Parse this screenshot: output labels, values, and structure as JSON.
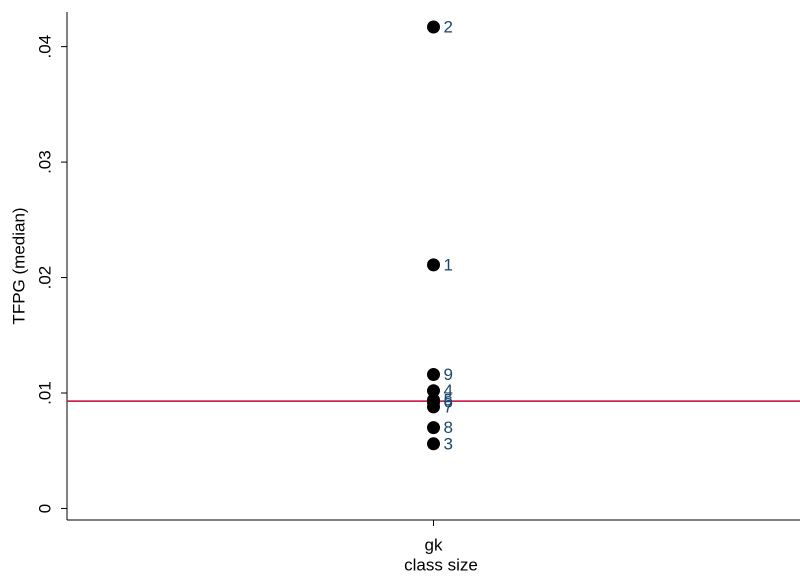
{
  "chart_data": {
    "type": "scatter",
    "categories": [
      "gk"
    ],
    "x_label": "class size",
    "y_label": "TFPG (median)",
    "values": [
      0.0211,
      0.0417,
      0.0056,
      0.0102,
      0.0094,
      0.0092,
      0.0088,
      0.007,
      0.0116
    ],
    "point_labels": [
      "1",
      "2",
      "3",
      "4",
      "5",
      "6",
      "7",
      "8",
      "9"
    ],
    "color": "#000000",
    "label_color": "#1a476f",
    "reference_line": 0.0093,
    "reference_line_color": "#c10534",
    "ylim": [
      -0.001,
      0.043
    ],
    "yticks": [
      0,
      {
        "value": 0.01,
        "label": ".01"
      },
      {
        "value": 0.02,
        "label": ".02"
      },
      {
        "value": 0.03,
        "label": ".03"
      },
      {
        "value": 0.04,
        "label": ".04"
      }
    ]
  }
}
